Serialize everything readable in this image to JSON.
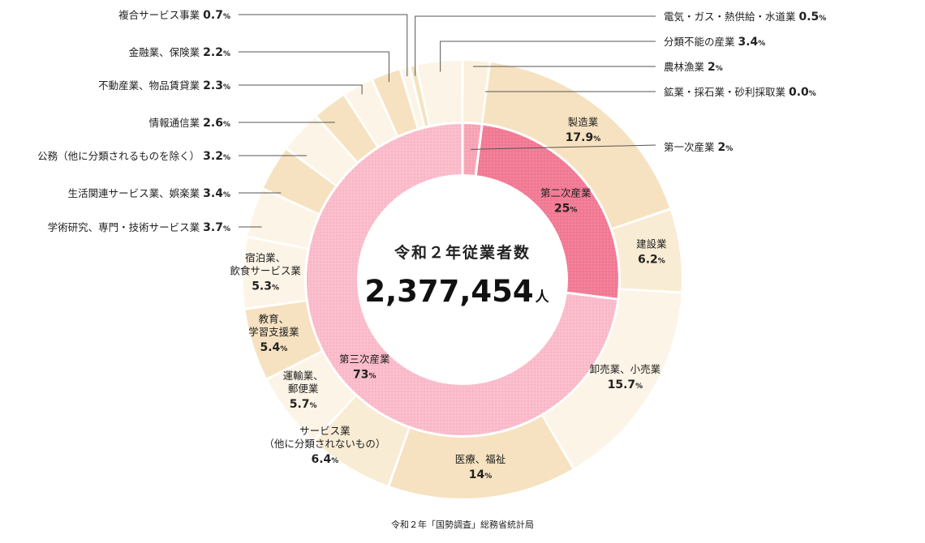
{
  "chart_data": {
    "type": "pie",
    "title": "令和２年従業者数",
    "total": "2,377,454",
    "total_unit": "人",
    "source": "令和２年「国勢調査」総務省統計局",
    "inner": [
      {
        "name": "第一次産業",
        "value": 2,
        "label": "第一次産業",
        "pct": "2",
        "color": "#f7a5b6"
      },
      {
        "name": "第二次産業",
        "value": 25,
        "label": "第二次産業",
        "pct": "25",
        "color": "#f27a94"
      },
      {
        "name": "第三次産業",
        "value": 73,
        "label": "第三次産業",
        "pct": "73",
        "color": "#fbbccb"
      }
    ],
    "outer": [
      {
        "name": "農林漁業",
        "value": 2,
        "label": "農林漁業",
        "pct": "2",
        "color": "#fbf0dd"
      },
      {
        "name": "鉱業・採石業・砂利採取業",
        "value": 0.0,
        "label": "鉱業・採石業・砂利採取業",
        "pct": "0.0",
        "color": "#f6e2c0"
      },
      {
        "name": "製造業",
        "value": 17.9,
        "label": "製造業",
        "pct": "17.9",
        "color": "#f6e2c0"
      },
      {
        "name": "建設業",
        "value": 6.2,
        "label": "建設業",
        "pct": "6.2",
        "color": "#f9ecd4"
      },
      {
        "name": "卸売業、小売業",
        "value": 15.7,
        "label": "卸売業、小売業",
        "pct": "15.7",
        "color": "#fcf4e6"
      },
      {
        "name": "医療、福祉",
        "value": 14,
        "label": "医療、福祉",
        "pct": "14",
        "color": "#f6e2c0"
      },
      {
        "name": "サービス業（他に分類されないもの）",
        "value": 6.4,
        "label": "サービス業\n（他に分類されないもの）",
        "pct": "6.4",
        "color": "#f9ecd4"
      },
      {
        "name": "運輸業、郵便業",
        "value": 5.7,
        "label": "運輸業、\n郵便業",
        "pct": "5.7",
        "color": "#fcf4e6"
      },
      {
        "name": "教育、学習支援業",
        "value": 5.4,
        "label": "教育、\n学習支援業",
        "pct": "5.4",
        "color": "#f6e2c0"
      },
      {
        "name": "宿泊業、飲食サービス業",
        "value": 5.3,
        "label": "宿泊業、\n飲食サービス業",
        "pct": "5.3",
        "color": "#fcf4e6"
      },
      {
        "name": "学術研究、専門・技術サービス業",
        "value": 3.7,
        "label": "学術研究、専門・技術サービス業",
        "pct": "3.7",
        "color": "#fcf4e6"
      },
      {
        "name": "生活関連サービス業、娯楽業",
        "value": 3.4,
        "label": "生活関連サービス業、娯楽業",
        "pct": "3.4",
        "color": "#f6e2c0"
      },
      {
        "name": "公務（他に分類されるものを除く）",
        "value": 3.2,
        "label": "公務（他に分類されるものを除く）",
        "pct": "3.2",
        "color": "#fcf4e6"
      },
      {
        "name": "情報通信業",
        "value": 2.6,
        "label": "情報通信業",
        "pct": "2.6",
        "color": "#f6e2c0"
      },
      {
        "name": "不動産業、物品賃貸業",
        "value": 2.3,
        "label": "不動産業、物品賃貸業",
        "pct": "2.3",
        "color": "#fcf4e6"
      },
      {
        "name": "金融業、保険業",
        "value": 2.2,
        "label": "金融業、保険業",
        "pct": "2.2",
        "color": "#f6e2c0"
      },
      {
        "name": "複合サービス事業",
        "value": 0.7,
        "label": "複合サービス事業",
        "pct": "0.7",
        "color": "#fcf4e6"
      },
      {
        "name": "電気・ガス・熱供給・水道業",
        "value": 0.5,
        "label": "電気・ガス・熱供給・水道業",
        "pct": "0.5",
        "color": "#f6e2c0"
      },
      {
        "name": "分類不能の産業",
        "value": 3.4,
        "label": "分類不能の産業",
        "pct": "3.4",
        "color": "#fcf4e6"
      }
    ]
  }
}
